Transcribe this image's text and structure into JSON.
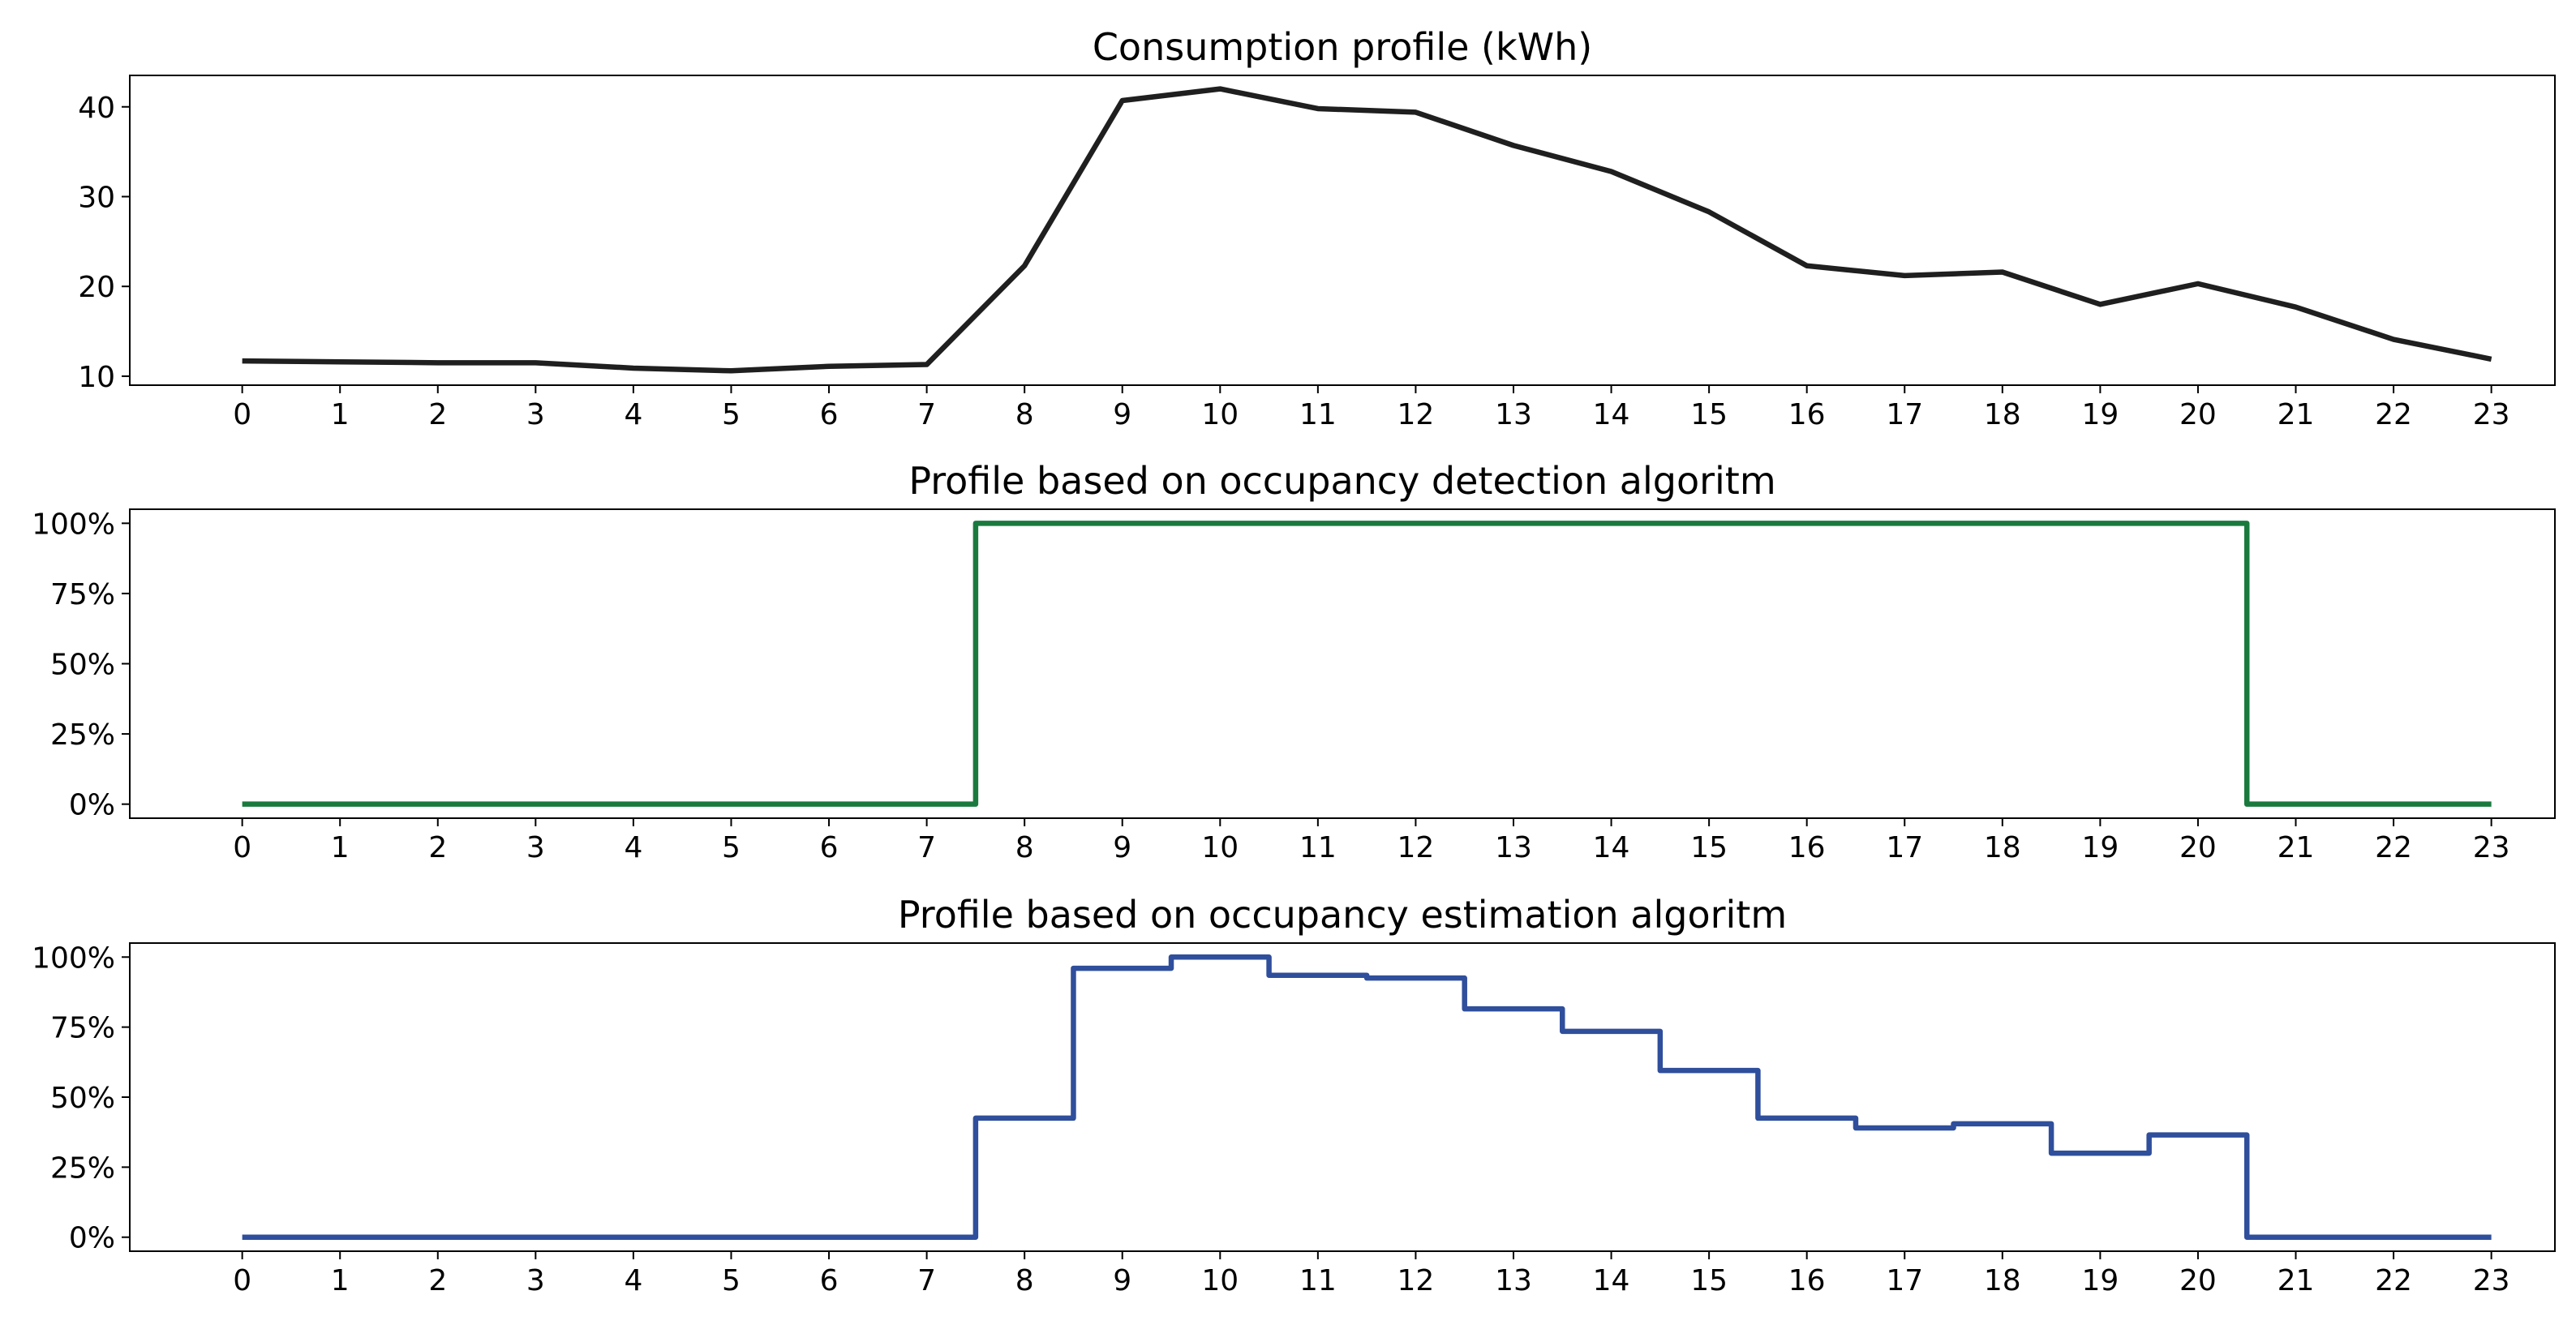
{
  "chart_data": [
    {
      "type": "line",
      "step": false,
      "title": "Consumption profile (kWh)",
      "xlabel": "",
      "ylabel": "",
      "x": [
        0,
        1,
        2,
        3,
        4,
        5,
        6,
        7,
        8,
        9,
        10,
        11,
        12,
        13,
        14,
        15,
        16,
        17,
        18,
        19,
        20,
        21,
        22,
        23
      ],
      "x_tick_labels": [
        "0",
        "1",
        "2",
        "3",
        "4",
        "5",
        "6",
        "7",
        "8",
        "9",
        "10",
        "11",
        "12",
        "13",
        "14",
        "15",
        "16",
        "17",
        "18",
        "19",
        "20",
        "21",
        "22",
        "23"
      ],
      "y_ticks": [
        10,
        20,
        30,
        40
      ],
      "y_tick_labels": [
        "10",
        "20",
        "30",
        "40"
      ],
      "ylim": [
        9,
        43.5
      ],
      "xlim": [
        -1.15,
        23.65
      ],
      "grid": false,
      "series": [
        {
          "name": "Consumption",
          "color": "#1f1f1f",
          "values": [
            11.7,
            11.6,
            11.5,
            11.5,
            10.9,
            10.6,
            11.1,
            11.3,
            22.3,
            40.7,
            42.0,
            39.8,
            39.4,
            35.7,
            32.8,
            28.3,
            22.3,
            21.2,
            21.6,
            18.0,
            20.3,
            17.7,
            14.1,
            11.9
          ]
        }
      ]
    },
    {
      "type": "line",
      "step": true,
      "title": "Profile based on occupancy detection algoritm",
      "xlabel": "",
      "ylabel": "",
      "x": [
        0,
        1,
        2,
        3,
        4,
        5,
        6,
        7,
        8,
        9,
        10,
        11,
        12,
        13,
        14,
        15,
        16,
        17,
        18,
        19,
        20,
        21,
        22,
        23
      ],
      "x_tick_labels": [
        "0",
        "1",
        "2",
        "3",
        "4",
        "5",
        "6",
        "7",
        "8",
        "9",
        "10",
        "11",
        "12",
        "13",
        "14",
        "15",
        "16",
        "17",
        "18",
        "19",
        "20",
        "21",
        "22",
        "23"
      ],
      "y_ticks": [
        0,
        25,
        50,
        75,
        100
      ],
      "y_tick_labels": [
        "0%",
        "25%",
        "50%",
        "75%",
        "100%"
      ],
      "ylim": [
        -5,
        105
      ],
      "xlim": [
        -1.15,
        23.65
      ],
      "grid": false,
      "series": [
        {
          "name": "Occupancy detection",
          "color": "#1a7a3e",
          "values": [
            0,
            0,
            0,
            0,
            0,
            0,
            0,
            0,
            100,
            100,
            100,
            100,
            100,
            100,
            100,
            100,
            100,
            100,
            100,
            100,
            100,
            0,
            0,
            0
          ]
        }
      ]
    },
    {
      "type": "line",
      "step": true,
      "title": "Profile based on occupancy estimation algoritm",
      "xlabel": "",
      "ylabel": "",
      "x": [
        0,
        1,
        2,
        3,
        4,
        5,
        6,
        7,
        8,
        9,
        10,
        11,
        12,
        13,
        14,
        15,
        16,
        17,
        18,
        19,
        20,
        21,
        22,
        23
      ],
      "x_tick_labels": [
        "0",
        "1",
        "2",
        "3",
        "4",
        "5",
        "6",
        "7",
        "8",
        "9",
        "10",
        "11",
        "12",
        "13",
        "14",
        "15",
        "16",
        "17",
        "18",
        "19",
        "20",
        "21",
        "22",
        "23"
      ],
      "y_ticks": [
        0,
        25,
        50,
        75,
        100
      ],
      "y_tick_labels": [
        "0%",
        "25%",
        "50%",
        "75%",
        "100%"
      ],
      "ylim": [
        -5,
        105
      ],
      "xlim": [
        -1.15,
        23.65
      ],
      "grid": false,
      "series": [
        {
          "name": "Occupancy estimation",
          "color": "#2f4f9c",
          "values": [
            0,
            0,
            0,
            0,
            0,
            0,
            0,
            0,
            42.5,
            96,
            100,
            93.5,
            92.5,
            81.5,
            73.5,
            59.5,
            42.5,
            39,
            40.5,
            30,
            36.5,
            0,
            0,
            0
          ]
        }
      ]
    }
  ]
}
